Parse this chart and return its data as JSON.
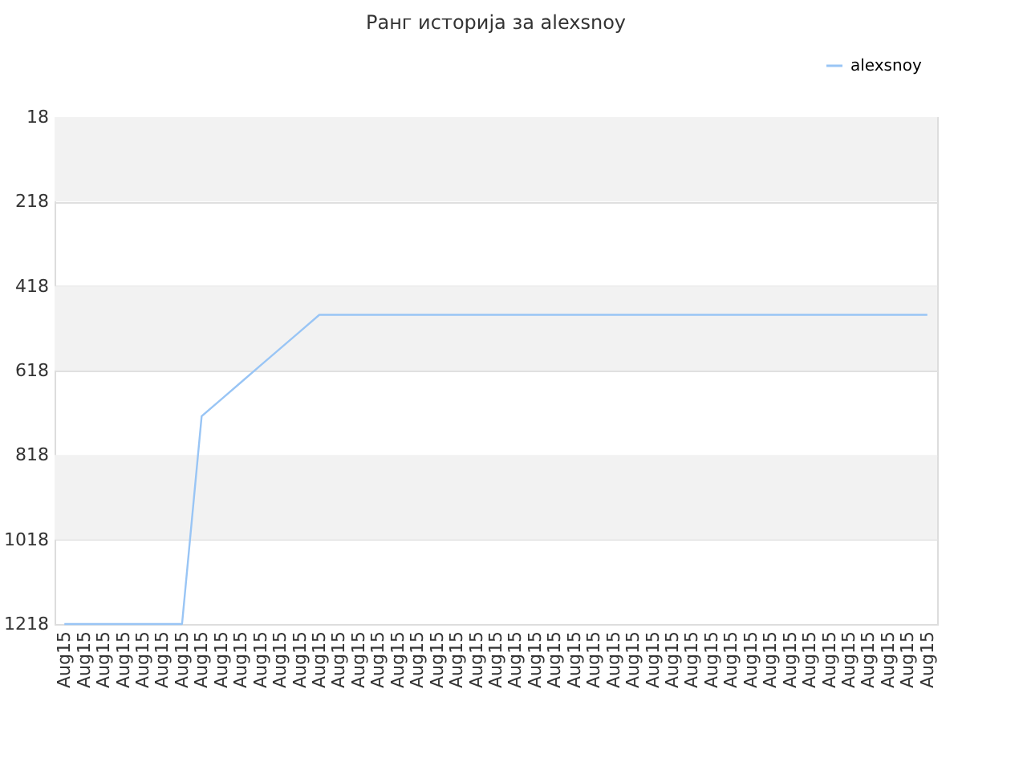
{
  "chart_data": {
    "type": "line",
    "title": "Ранг историја за alexsnoy",
    "categories": [
      "Aug15",
      "Aug15",
      "Aug15",
      "Aug15",
      "Aug15",
      "Aug15",
      "Aug15",
      "Aug15",
      "Aug15",
      "Aug15",
      "Aug15",
      "Aug15",
      "Aug15",
      "Aug15",
      "Aug15",
      "Aug15",
      "Aug15",
      "Aug15",
      "Aug15",
      "Aug15",
      "Aug15",
      "Aug15",
      "Aug15",
      "Aug15",
      "Aug15",
      "Aug15",
      "Aug15",
      "Aug15",
      "Aug15",
      "Aug15",
      "Aug15",
      "Aug15",
      "Aug15",
      "Aug15",
      "Aug15",
      "Aug15",
      "Aug15",
      "Aug15",
      "Aug15",
      "Aug15",
      "Aug15",
      "Aug15",
      "Aug15",
      "Aug15",
      "Aug15"
    ],
    "series": [
      {
        "name": "alexsnoy",
        "color": "#99c5f5",
        "values": [
          1218,
          1218,
          1218,
          1218,
          1218,
          1218,
          1218,
          726,
          686,
          646,
          606,
          566,
          526,
          486,
          486,
          486,
          486,
          486,
          486,
          486,
          486,
          486,
          486,
          486,
          486,
          486,
          486,
          486,
          486,
          486,
          486,
          486,
          486,
          486,
          486,
          486,
          486,
          486,
          486,
          486,
          486,
          486,
          486,
          486,
          486
        ]
      }
    ],
    "ylim": [
      1218,
      18
    ],
    "yticks": [
      18,
      218,
      418,
      618,
      818,
      1018,
      1218
    ],
    "bands": [
      {
        "axis": "y",
        "from": 18,
        "to": 218,
        "color": "#f2f2f2"
      },
      {
        "axis": "y",
        "from": 418,
        "to": 618,
        "color": "#f2f2f2"
      },
      {
        "axis": "y",
        "from": 818,
        "to": 1018,
        "color": "#f2f2f2"
      }
    ],
    "grid": "y",
    "legend": "top right",
    "marker": "none",
    "line_style": "solid"
  }
}
